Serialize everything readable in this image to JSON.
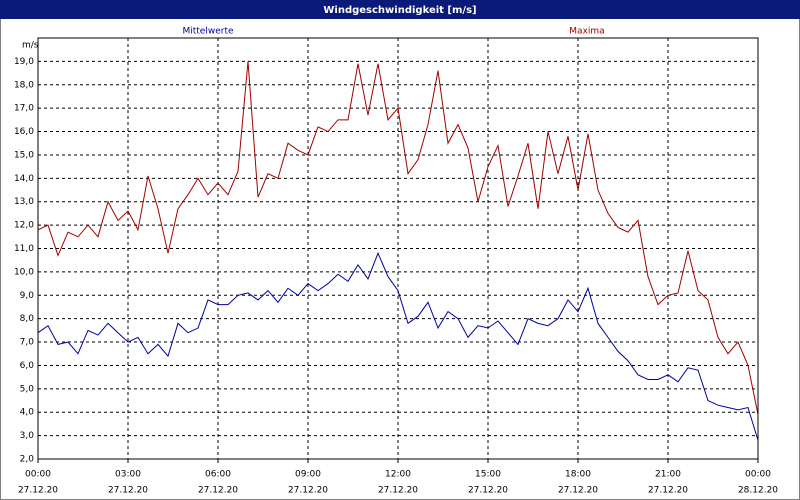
{
  "chart_data": {
    "type": "line",
    "title": "Windgeschwindigkeit [m/s]",
    "y_label": "m/s",
    "grid": true,
    "xlim": [
      0,
      1440
    ],
    "ylim": [
      2,
      20
    ],
    "xticks": [
      {
        "value": 0,
        "label": "00:00",
        "date": "27.12.20"
      },
      {
        "value": 180,
        "label": "03:00",
        "date": "27.12.20"
      },
      {
        "value": 360,
        "label": "06:00",
        "date": "27.12.20"
      },
      {
        "value": 540,
        "label": "09:00",
        "date": "27.12.20"
      },
      {
        "value": 720,
        "label": "12:00",
        "date": "27.12.20"
      },
      {
        "value": 900,
        "label": "15:00",
        "date": "27.12.20"
      },
      {
        "value": 1080,
        "label": "18:00",
        "date": "27.12.20"
      },
      {
        "value": 1260,
        "label": "21:00",
        "date": "27.12.20"
      },
      {
        "value": 1440,
        "label": "00:00",
        "date": "28.12.20"
      }
    ],
    "yticks": [
      {
        "value": 2,
        "label": "2,0"
      },
      {
        "value": 3,
        "label": "3,0"
      },
      {
        "value": 4,
        "label": "4,0"
      },
      {
        "value": 5,
        "label": "5,0"
      },
      {
        "value": 6,
        "label": "6,0"
      },
      {
        "value": 7,
        "label": "7,0"
      },
      {
        "value": 8,
        "label": "8,0"
      },
      {
        "value": 9,
        "label": "9,0"
      },
      {
        "value": 10,
        "label": "10,0"
      },
      {
        "value": 11,
        "label": "11,0"
      },
      {
        "value": 12,
        "label": "12,0"
      },
      {
        "value": 13,
        "label": "13,0"
      },
      {
        "value": 14,
        "label": "14,0"
      },
      {
        "value": 15,
        "label": "15,0"
      },
      {
        "value": 16,
        "label": "16,0"
      },
      {
        "value": 17,
        "label": "17,0"
      },
      {
        "value": 18,
        "label": "18,0"
      },
      {
        "value": 19,
        "label": "19,0"
      }
    ],
    "x": [
      0,
      20,
      40,
      60,
      80,
      100,
      120,
      140,
      160,
      180,
      200,
      220,
      240,
      260,
      280,
      300,
      320,
      340,
      360,
      380,
      400,
      420,
      440,
      460,
      480,
      500,
      520,
      540,
      560,
      580,
      600,
      620,
      640,
      660,
      680,
      700,
      720,
      740,
      760,
      780,
      800,
      820,
      840,
      860,
      880,
      900,
      920,
      940,
      960,
      980,
      1000,
      1020,
      1040,
      1060,
      1080,
      1100,
      1120,
      1140,
      1160,
      1180,
      1200,
      1220,
      1240,
      1260,
      1280,
      1300,
      1320,
      1340,
      1360,
      1380,
      1400,
      1420,
      1440
    ],
    "series": [
      {
        "name": "Mittelwerte",
        "color": "#0000a0",
        "values": [
          7.4,
          7.7,
          6.9,
          7.0,
          6.5,
          7.5,
          7.3,
          7.8,
          7.4,
          7.0,
          7.2,
          6.5,
          6.9,
          6.4,
          7.8,
          7.4,
          7.6,
          8.8,
          8.6,
          8.6,
          9.0,
          9.1,
          8.8,
          9.2,
          8.7,
          9.3,
          9.0,
          9.5,
          9.2,
          9.5,
          9.9,
          9.6,
          10.3,
          9.7,
          10.8,
          9.8,
          9.2,
          7.8,
          8.1,
          8.7,
          7.6,
          8.3,
          8.0,
          7.2,
          7.7,
          7.6,
          7.9,
          7.4,
          6.9,
          8.0,
          7.8,
          7.7,
          8.0,
          8.8,
          8.3,
          9.3,
          7.8,
          7.2,
          6.6,
          6.2,
          5.6,
          5.4,
          5.4,
          5.6,
          5.3,
          5.9,
          5.8,
          4.5,
          4.3,
          4.2,
          4.1,
          4.2,
          2.8
        ]
      },
      {
        "name": "Maxima",
        "color": "#a00000",
        "values": [
          11.8,
          12.0,
          10.7,
          11.7,
          11.5,
          12.0,
          11.5,
          13.0,
          12.2,
          12.6,
          11.8,
          14.1,
          12.7,
          10.8,
          12.7,
          13.3,
          14.0,
          13.3,
          13.8,
          13.3,
          14.3,
          19.0,
          13.2,
          14.2,
          14.0,
          15.5,
          15.2,
          15.0,
          16.2,
          16.0,
          16.5,
          16.5,
          18.9,
          16.7,
          18.9,
          16.5,
          17.0,
          14.2,
          14.8,
          16.3,
          18.6,
          15.5,
          16.3,
          15.3,
          13.0,
          14.5,
          15.4,
          12.8,
          14.1,
          15.5,
          12.7,
          16.0,
          14.2,
          15.8,
          13.5,
          15.9,
          13.5,
          12.5,
          11.9,
          11.7,
          12.2,
          9.8,
          8.6,
          9.0,
          9.1,
          10.9,
          9.2,
          8.8,
          7.2,
          6.5,
          7.0,
          6.0,
          3.9
        ]
      }
    ]
  }
}
